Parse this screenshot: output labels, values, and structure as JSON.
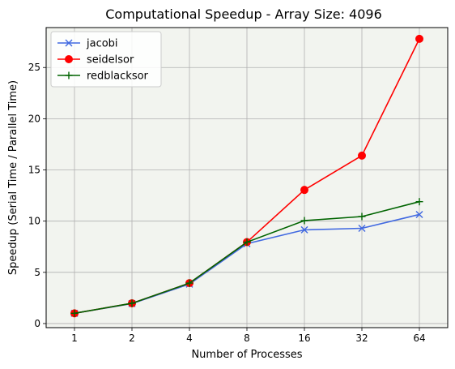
{
  "chart_data": {
    "type": "line",
    "title": "Computational Speedup - Array Size: 4096",
    "xlabel": "Number of Processes",
    "ylabel": "Speedup (Serial Time / Parallel Time)",
    "categories": [
      "1",
      "2",
      "4",
      "8",
      "16",
      "32",
      "64"
    ],
    "ylim": [
      -0.4,
      28.9
    ],
    "yticks": [
      0,
      5,
      10,
      15,
      20,
      25
    ],
    "grid": true,
    "legend_position": "top-left",
    "plot_background": "#f2f4ef",
    "series": [
      {
        "name": "jacobi",
        "color": "#4169e1",
        "marker": "x",
        "values": [
          1.0,
          1.95,
          3.85,
          7.8,
          9.15,
          9.3,
          10.65
        ]
      },
      {
        "name": "seidelsor",
        "color": "#ff0000",
        "marker": "o",
        "values": [
          1.0,
          1.98,
          3.95,
          7.95,
          13.05,
          16.4,
          27.8
        ]
      },
      {
        "name": "redblacksor",
        "color": "#006400",
        "marker": "+",
        "values": [
          1.0,
          1.98,
          3.95,
          7.95,
          10.05,
          10.45,
          11.9
        ]
      }
    ]
  }
}
